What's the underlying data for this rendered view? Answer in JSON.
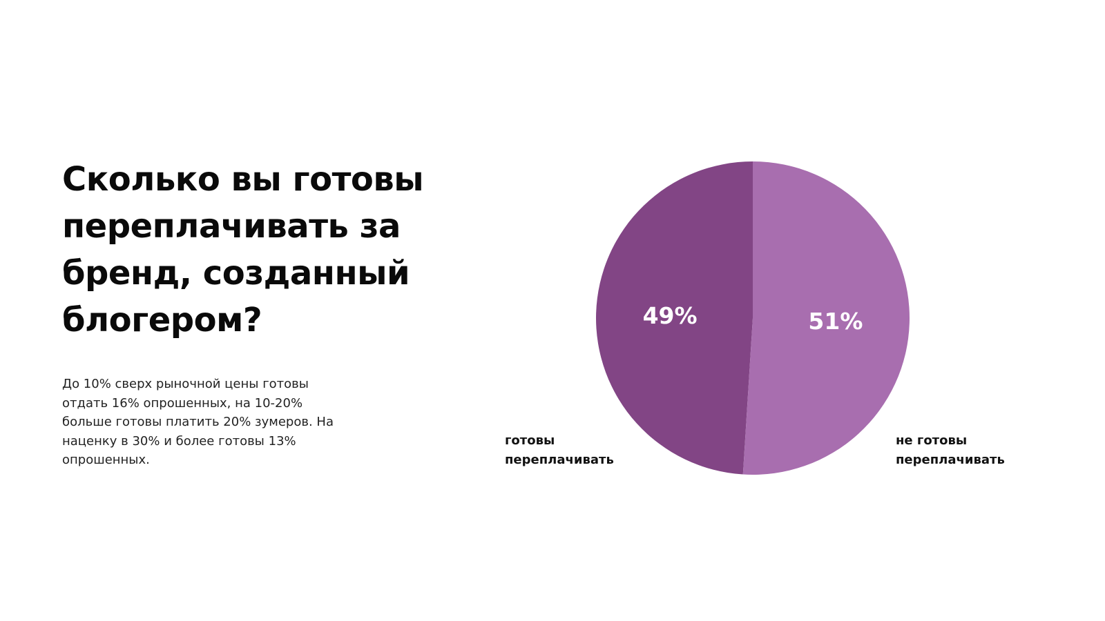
{
  "slide": {
    "heading": "Сколько вы готовы переплачивать за бренд, созданный блогером?",
    "body": "До 10% сверх рыночной цены готовы отдать 16% опрошенных, на 10-20% больше готовы платить 20% зумеров. На наценку в 30% и более готовы 13% опрошенных."
  },
  "chart_data": {
    "type": "pie",
    "title": "",
    "categories": [
      "готовы переплачивать",
      "не готовы переплачивать"
    ],
    "values": [
      49,
      51
    ],
    "value_labels": [
      "49%",
      "51%"
    ],
    "colors": [
      "#824585",
      "#a86eaf"
    ],
    "legend_placement": "below-sides"
  }
}
